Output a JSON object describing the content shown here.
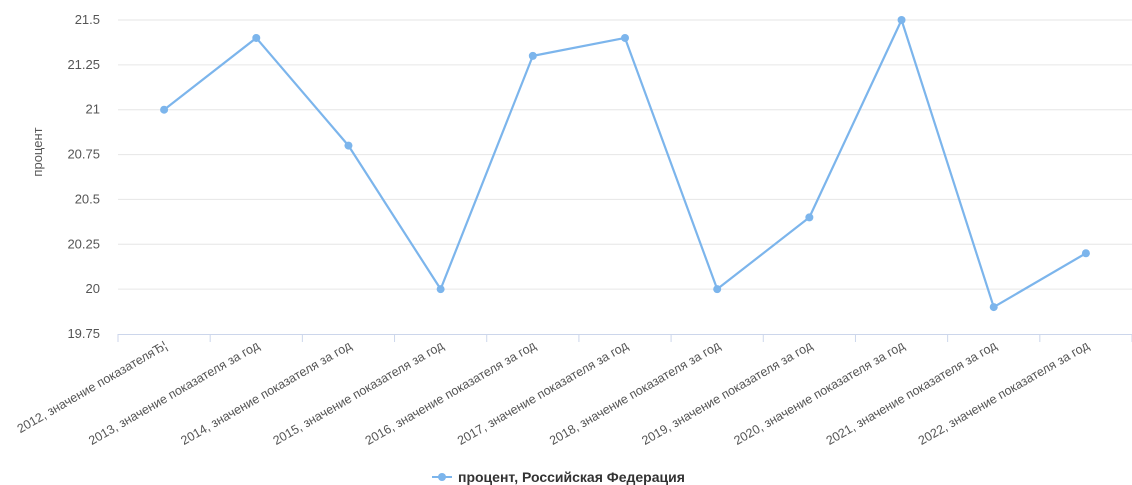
{
  "chart_data": {
    "type": "line",
    "title": "",
    "xlabel": "",
    "ylabel": "процент",
    "ylim": [
      19.75,
      21.5
    ],
    "yticks": [
      "19.75",
      "20",
      "20.25",
      "20.5",
      "20.75",
      "21",
      "21.25",
      "21.5"
    ],
    "grid": true,
    "legend_position": "bottom-center",
    "categories": [
      "2012, значение показателяЂ¦",
      "2013, значение показателя за год",
      "2014, значение показателя за год",
      "2015, значение показателя за год",
      "2016, значение показателя за год",
      "2017, значение показателя за год",
      "2018, значение показателя за год",
      "2019, значение показателя за год",
      "2020, значение показателя за год",
      "2021, значение показателя за год",
      "2022, значение показателя за год"
    ],
    "series": [
      {
        "name": "процент, Российская Федерация",
        "color": "#7cb5ec",
        "values": [
          21.0,
          21.4,
          20.8,
          20.0,
          21.3,
          21.4,
          20.0,
          20.4,
          21.5,
          19.9,
          20.2
        ]
      }
    ]
  }
}
